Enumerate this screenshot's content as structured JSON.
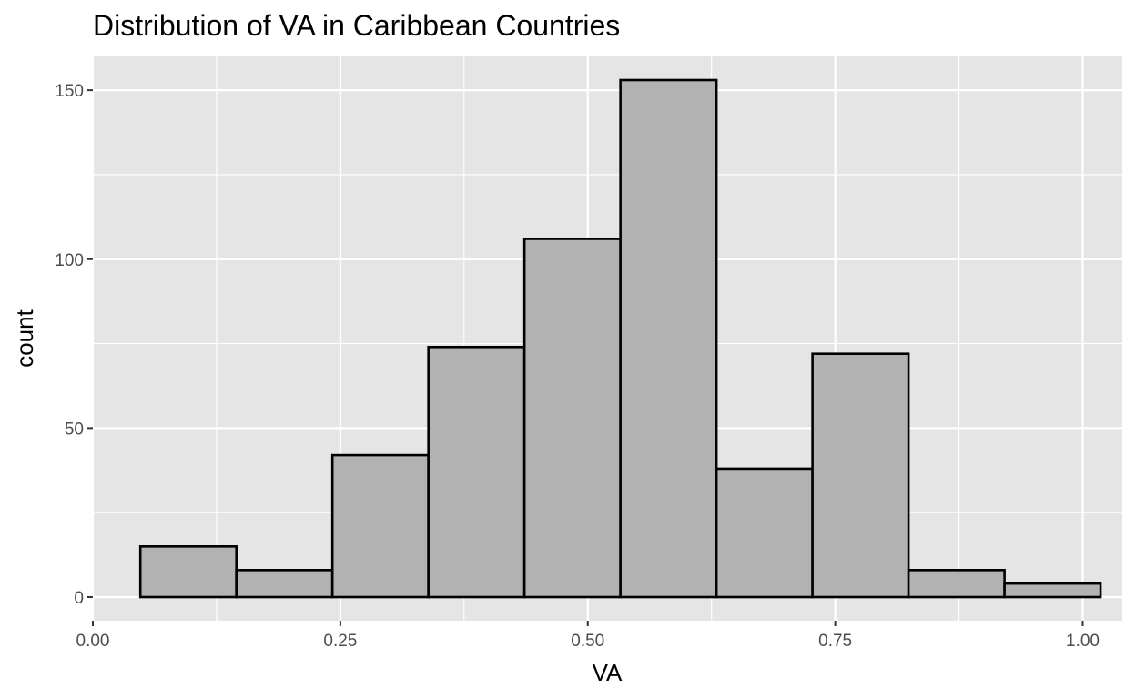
{
  "chart_data": {
    "type": "bar",
    "title": "Distribution of VA in Caribbean Countries",
    "xlabel": "VA",
    "ylabel": "count",
    "xlim": [
      0.0,
      1.04
    ],
    "ylim": [
      -7,
      160
    ],
    "x_ticks": [
      {
        "value": 0.0,
        "label": "0.00"
      },
      {
        "value": 0.25,
        "label": "0.25"
      },
      {
        "value": 0.5,
        "label": "0.50"
      },
      {
        "value": 0.75,
        "label": "0.75"
      },
      {
        "value": 1.0,
        "label": "1.00"
      }
    ],
    "y_ticks": [
      {
        "value": 0,
        "label": "0"
      },
      {
        "value": 50,
        "label": "50"
      },
      {
        "value": 100,
        "label": "100"
      },
      {
        "value": 150,
        "label": "150"
      }
    ],
    "bins": [
      {
        "x0": 0.048,
        "x1": 0.145,
        "count": 15
      },
      {
        "x0": 0.145,
        "x1": 0.242,
        "count": 8
      },
      {
        "x0": 0.242,
        "x1": 0.339,
        "count": 42
      },
      {
        "x0": 0.339,
        "x1": 0.436,
        "count": 74
      },
      {
        "x0": 0.436,
        "x1": 0.533,
        "count": 106
      },
      {
        "x0": 0.533,
        "x1": 0.63,
        "count": 153
      },
      {
        "x0": 0.63,
        "x1": 0.727,
        "count": 38
      },
      {
        "x0": 0.727,
        "x1": 0.824,
        "count": 72
      },
      {
        "x0": 0.824,
        "x1": 0.921,
        "count": 8
      },
      {
        "x0": 0.921,
        "x1": 1.018,
        "count": 4
      }
    ],
    "grid": true,
    "colors": {
      "panel_background": "#e5e5e5",
      "gridline": "#ffffff",
      "bar_fill": "#b2b2b2",
      "bar_outline": "#000000",
      "tick_text": "#4d4d4d"
    }
  }
}
